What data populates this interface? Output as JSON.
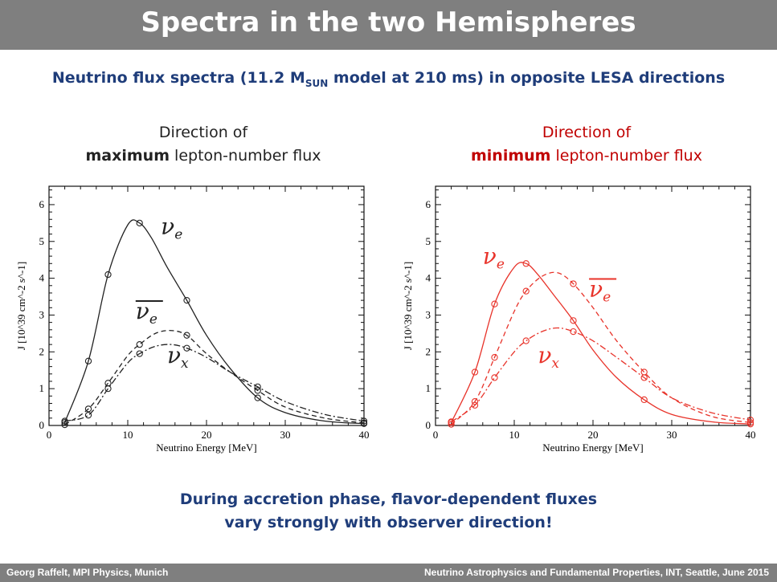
{
  "header": {
    "title": "Spectra in the two Hemispheres"
  },
  "subtitle": {
    "main": "Neutrino flux spectra (11.2 M",
    "sub": "SUN",
    "rest": " model at 210 ms) in opposite LESA directions"
  },
  "panels": {
    "left": {
      "line1": "Direction of",
      "bold": "maximum",
      "rest": " lepton-number flux"
    },
    "right": {
      "line1": "Direction of",
      "bold": "minimum",
      "rest": " lepton-number flux"
    }
  },
  "conclusion": {
    "line1": "During accretion phase, flavor-dependent fluxes",
    "line2": "vary strongly with observer direction!"
  },
  "footer": {
    "left": "Georg Raffelt, MPI Physics, Munich",
    "right": "Neutrino Astrophysics and Fundamental Properties, INT, Seattle, June 2015"
  },
  "colors": {
    "bar": "#7f7f7f",
    "subtitle": "#1f3d7a",
    "left_curves": "#222222",
    "right_curves": "#e8332a",
    "right_heading": "#c00000"
  },
  "chart_data": [
    {
      "type": "line",
      "color": "#222222",
      "xlabel": "Neutrino Energy [MeV]",
      "ylabel": "J [10^39 cm^-2 s^-1]",
      "xlim": [
        0,
        40
      ],
      "ylim": [
        0,
        6.5
      ],
      "xticks": [
        0,
        10,
        20,
        30,
        40
      ],
      "yticks": [
        0,
        1,
        2,
        3,
        4,
        5,
        6
      ],
      "series": [
        {
          "name": "νe",
          "style": "solid",
          "x": [
            2,
            5,
            7.5,
            10,
            11.5,
            13,
            15,
            17.5,
            20,
            23,
            26.5,
            30,
            35,
            40
          ],
          "y": [
            0.08,
            1.75,
            4.1,
            5.45,
            5.5,
            5.1,
            4.3,
            3.4,
            2.45,
            1.55,
            0.75,
            0.35,
            0.12,
            0.05
          ],
          "markers_x": [
            2,
            5,
            7.5,
            11.5,
            17.5,
            26.5,
            40
          ],
          "markers_y": [
            0.08,
            1.75,
            4.1,
            5.5,
            3.4,
            0.75,
            0.05
          ]
        },
        {
          "name": "ν̄e",
          "style": "dashed",
          "x": [
            2,
            5,
            7.5,
            10,
            11.5,
            13.5,
            15.5,
            17.5,
            20,
            23,
            26.5,
            30,
            35,
            40
          ],
          "y": [
            0.02,
            0.45,
            1.15,
            1.9,
            2.2,
            2.5,
            2.58,
            2.45,
            1.95,
            1.45,
            0.95,
            0.5,
            0.2,
            0.07
          ],
          "markers_x": [
            2,
            5,
            7.5,
            11.5,
            17.5,
            26.5,
            40
          ],
          "markers_y": [
            0.02,
            0.45,
            1.15,
            2.2,
            2.45,
            0.95,
            0.07
          ]
        },
        {
          "name": "νx",
          "style": "dashdot",
          "x": [
            2,
            5,
            7.5,
            10,
            11.5,
            13.5,
            15.5,
            17.5,
            20,
            23,
            26.5,
            30,
            35,
            40
          ],
          "y": [
            0.12,
            0.28,
            1.0,
            1.7,
            1.95,
            2.15,
            2.2,
            2.1,
            1.85,
            1.45,
            1.05,
            0.65,
            0.3,
            0.12
          ],
          "markers_x": [
            2,
            5,
            7.5,
            11.5,
            17.5,
            26.5,
            40
          ],
          "markers_y": [
            0.12,
            0.28,
            1.0,
            1.95,
            2.1,
            1.05,
            0.12
          ]
        }
      ],
      "labels": [
        {
          "base": "ν",
          "sub": "e",
          "bar": false,
          "x": 14.2,
          "y": 5.2
        },
        {
          "base": "ν",
          "sub": "e",
          "bar": true,
          "x": 11.0,
          "y": 2.9
        },
        {
          "base": "ν",
          "sub": "x",
          "bar": false,
          "x": 15.0,
          "y": 1.7
        }
      ]
    },
    {
      "type": "line",
      "color": "#e8332a",
      "xlabel": "Neutrino Energy [MeV]",
      "ylabel": "J [10^39 cm^-2 s^-1]",
      "xlim": [
        0,
        40
      ],
      "ylim": [
        0,
        6.5
      ],
      "xticks": [
        0,
        10,
        20,
        30,
        40
      ],
      "yticks": [
        0,
        1,
        2,
        3,
        4,
        5,
        6
      ],
      "series": [
        {
          "name": "νe",
          "style": "solid",
          "x": [
            2,
            5,
            7.5,
            10,
            11.5,
            13,
            15,
            17.5,
            20,
            23,
            26.5,
            30,
            35,
            40
          ],
          "y": [
            0.08,
            1.45,
            3.3,
            4.3,
            4.4,
            4.1,
            3.55,
            2.85,
            2.05,
            1.3,
            0.7,
            0.3,
            0.1,
            0.04
          ],
          "markers_x": [
            2,
            5,
            7.5,
            11.5,
            17.5,
            26.5,
            40
          ],
          "markers_y": [
            0.08,
            1.45,
            3.3,
            4.4,
            2.85,
            0.7,
            0.04
          ]
        },
        {
          "name": "ν̄e",
          "style": "dashed",
          "x": [
            2,
            5,
            7.5,
            10,
            11.5,
            13.5,
            15.5,
            17.5,
            20,
            23,
            26.5,
            30,
            35,
            40
          ],
          "y": [
            0.03,
            0.65,
            1.85,
            3.1,
            3.65,
            4.05,
            4.15,
            3.85,
            3.2,
            2.3,
            1.45,
            0.75,
            0.25,
            0.08
          ],
          "markers_x": [
            2,
            5,
            7.5,
            11.5,
            17.5,
            26.5,
            40
          ],
          "markers_y": [
            0.03,
            0.65,
            1.85,
            3.65,
            3.85,
            1.45,
            0.08
          ]
        },
        {
          "name": "νx",
          "style": "dashdot",
          "x": [
            2,
            5,
            7.5,
            10,
            11.5,
            13.5,
            15.5,
            17.5,
            20,
            23,
            26.5,
            30,
            35,
            40
          ],
          "y": [
            0.1,
            0.55,
            1.3,
            2.0,
            2.3,
            2.55,
            2.65,
            2.55,
            2.3,
            1.85,
            1.3,
            0.75,
            0.35,
            0.15
          ],
          "markers_x": [
            2,
            5,
            7.5,
            11.5,
            17.5,
            26.5,
            40
          ],
          "markers_y": [
            0.1,
            0.55,
            1.3,
            2.3,
            2.55,
            1.3,
            0.15
          ]
        }
      ],
      "labels": [
        {
          "base": "ν",
          "sub": "e",
          "bar": false,
          "x": 6.0,
          "y": 4.4
        },
        {
          "base": "ν",
          "sub": "e",
          "bar": true,
          "x": 19.5,
          "y": 3.5
        },
        {
          "base": "ν",
          "sub": "x",
          "bar": false,
          "x": 13.0,
          "y": 1.7
        }
      ]
    }
  ]
}
